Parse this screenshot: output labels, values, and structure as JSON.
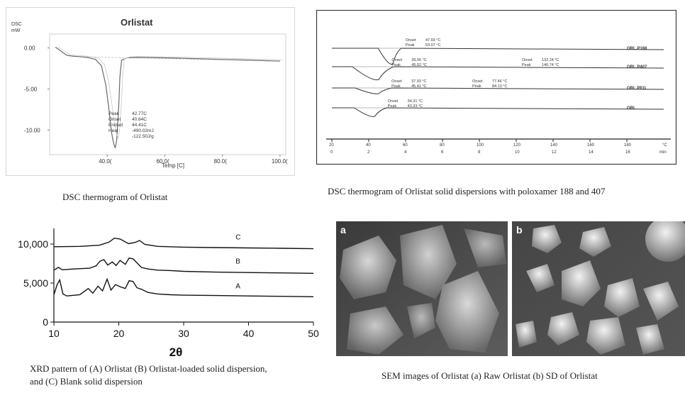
{
  "captions": {
    "dsc_orlistat": "DSC  thermogram  of Orlistat",
    "dsc_sd": "DSC  thermogram  of Orlistat solid dispersions with poloxamer 188 and  407",
    "xrd_line1": "XRD pattern of (A) Orlistat (B) Orlistat-loaded solid dispersion,",
    "xrd_line2": "and (C) Blank solid dispersion",
    "sem": "SEM images of Orlistat (a) Raw Orlistat (b) SD of Orlistat"
  },
  "sem": {
    "label_a": "a",
    "label_b": "b"
  },
  "chart_data": [
    {
      "type": "line",
      "title": "Orlistat",
      "ylabel_line1": "DSC",
      "ylabel_line2": "mW",
      "xlabel": "Temp [C]",
      "xlim": [
        20,
        102
      ],
      "ylim": [
        -13,
        1
      ],
      "x_ticks": [
        40,
        60,
        80,
        100
      ],
      "x_tick_labels": [
        "40.0(",
        "60.0(",
        "80.0(",
        "100.0("
      ],
      "y_ticks": [
        0,
        -5,
        -10
      ],
      "y_tick_labels": [
        "0.00",
        "-5.00",
        "-10.00"
      ],
      "series": [
        {
          "x": [
            22,
            24,
            26,
            28,
            30,
            33,
            36,
            38,
            39.5,
            40.6,
            41.5,
            42.2,
            42.77,
            43.3,
            44.0,
            44.41,
            45,
            47,
            50,
            60,
            70,
            80,
            90,
            100
          ],
          "y": [
            0.1,
            -0.4,
            -0.9,
            -1.0,
            -1.05,
            -1.15,
            -1.4,
            -2.2,
            -4.5,
            -7.5,
            -10.3,
            -11.6,
            -12.2,
            -11.2,
            -7.0,
            -3.5,
            -1.5,
            -1.2,
            -1.15,
            -1.2,
            -1.3,
            -1.4,
            -1.5,
            -1.6
          ]
        }
      ],
      "annotation": {
        "rows": [
          {
            "label": "Peak",
            "value": "42.77C"
          },
          {
            "label": "Onset",
            "value": "40.64C"
          },
          {
            "label": "Endset",
            "value": "44.41C"
          },
          {
            "label": "Heat",
            "value": "-490.02mJ"
          },
          {
            "label": "",
            "value": "-122.50J/g"
          }
        ]
      }
    },
    {
      "type": "line",
      "title": "",
      "x_ticks_top": [
        20,
        40,
        60,
        80,
        100,
        120,
        140,
        160,
        180
      ],
      "x_tick_labels_top": [
        "20",
        "40",
        "60",
        "80",
        "100",
        "120",
        "140",
        "160",
        "180"
      ],
      "x_ticks_bottom": [
        0,
        2,
        4,
        6,
        8,
        10,
        12,
        14,
        16
      ],
      "x_tick_labels_bottom": [
        "0",
        "2",
        "4",
        "6",
        "8",
        "10",
        "12",
        "14",
        "16"
      ],
      "x_unit_top": "°C",
      "x_unit_bottom": "min",
      "xlim": [
        20,
        200
      ],
      "series": [
        {
          "name": "ORL.P188",
          "offset": 0,
          "peak_temp": 53.07,
          "depth": 22,
          "width": 5,
          "labels": [
            {
              "t1": "Onset",
              "v1": "47.93 °C",
              "t2": "Peak",
              "v2": "53.07 °C"
            }
          ]
        },
        {
          "name": "ORL.P407",
          "offset": 1,
          "peak_temp": 45.52,
          "depth": 18,
          "width": 9,
          "labels": [
            {
              "t1": "Onset",
              "v1": "39.06 °C",
              "t2": "Peak",
              "v2": "45.52 °C"
            },
            {
              "t1": "Onset",
              "v1": "132.24 °C",
              "t2": "Peak",
              "v2": "140.74 °C"
            }
          ]
        },
        {
          "name": "ORL.PEG",
          "offset": 2,
          "peak_temp": 45.41,
          "depth": 8,
          "width": 8,
          "labels": [
            {
              "t1": "Onset",
              "v1": "37.93 °C",
              "t2": "Peak",
              "v2": "45.41 °C"
            },
            {
              "t1": "Onset",
              "v1": "77.46 °C",
              "t2": "Peak",
              "v2": "84.13 °C"
            }
          ]
        },
        {
          "name": "ORL",
          "offset": 3,
          "peak_temp": 43.33,
          "depth": 12,
          "width": 7,
          "labels": [
            {
              "t1": "Onset",
              "v1": "34.31 °C",
              "t2": "Peak",
              "v2": "43.33 °C"
            }
          ]
        }
      ]
    },
    {
      "type": "line",
      "title": "",
      "xlabel": "2θ",
      "xlim": [
        10,
        50
      ],
      "ylim": [
        0,
        12000
      ],
      "x_ticks": [
        10,
        20,
        30,
        40,
        50
      ],
      "y_ticks": [
        0,
        5000,
        10000
      ],
      "y_tick_labels": [
        "0",
        "5,000",
        "10,000"
      ],
      "series": [
        {
          "name": "C",
          "baseline": 9600,
          "x": [
            10,
            14,
            17,
            18.5,
            19.3,
            20.2,
            21.5,
            22.5,
            23.2,
            24,
            26,
            30,
            35,
            40,
            45,
            50
          ],
          "y": [
            9650,
            9700,
            9850,
            10250,
            10750,
            10650,
            10050,
            10200,
            10450,
            9950,
            9700,
            9600,
            9550,
            9500,
            9450,
            9400
          ]
        },
        {
          "name": "B",
          "baseline": 6500,
          "x": [
            10,
            10.7,
            11.3,
            13,
            15.5,
            16.5,
            17.1,
            17.7,
            18.3,
            19,
            19.6,
            20.2,
            21,
            21.6,
            22.2,
            22.8,
            23.5,
            24.5,
            26,
            28,
            30,
            35,
            40,
            45,
            50
          ],
          "y": [
            6650,
            7000,
            6700,
            6800,
            6900,
            7200,
            7800,
            8000,
            7300,
            7700,
            7250,
            7900,
            7400,
            8200,
            8100,
            7600,
            7000,
            6800,
            6650,
            6600,
            6500,
            6400,
            6350,
            6300,
            6250
          ]
        },
        {
          "name": "A",
          "baseline": 3300,
          "x": [
            10,
            10.5,
            10.9,
            11.4,
            12,
            14,
            15.3,
            16,
            16.8,
            17.5,
            18.2,
            18.8,
            19.5,
            20.3,
            21.0,
            21.6,
            22.2,
            22.8,
            23.5,
            24.5,
            26,
            28,
            30,
            35,
            40,
            45,
            50
          ],
          "y": [
            3500,
            4800,
            5400,
            3600,
            3350,
            3500,
            4300,
            3700,
            4600,
            4000,
            5500,
            4100,
            4800,
            4500,
            4300,
            5300,
            5200,
            4400,
            4200,
            3800,
            3600,
            3500,
            3450,
            3400,
            3350,
            3300,
            3250
          ]
        }
      ]
    }
  ]
}
